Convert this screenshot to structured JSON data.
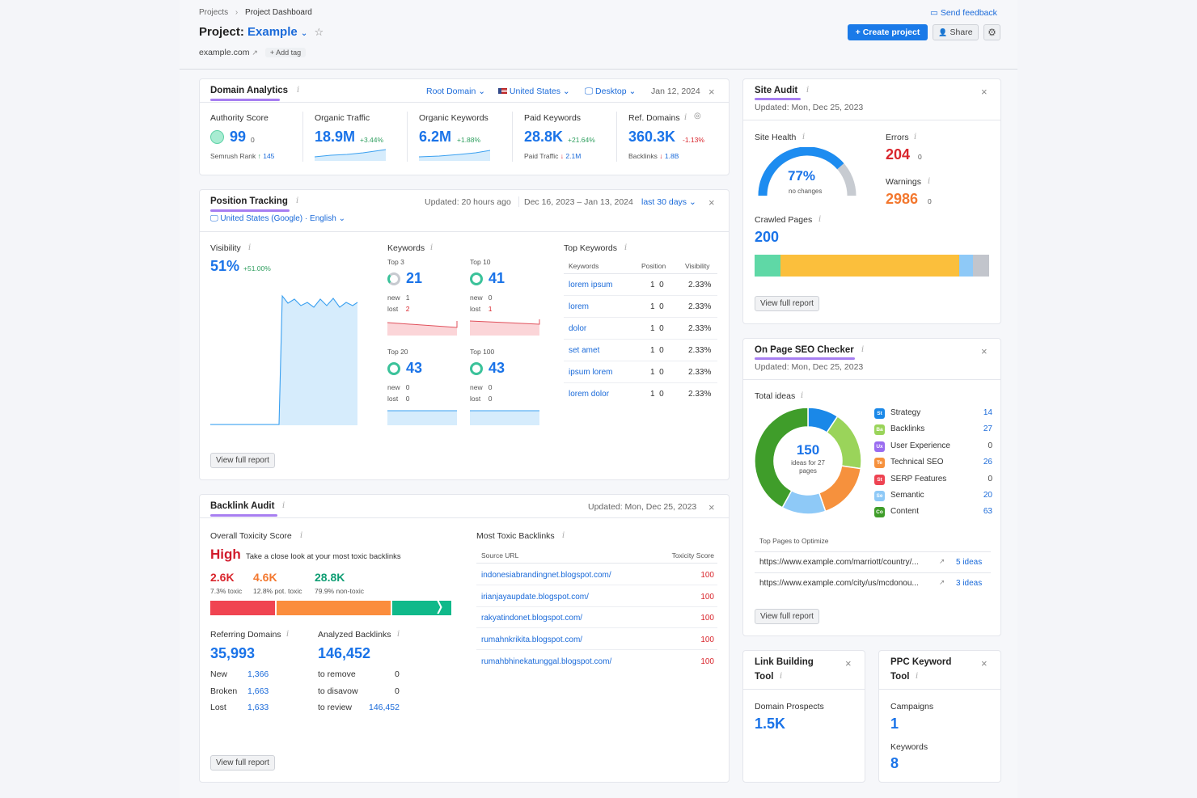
{
  "breadcrumb": {
    "root": "Projects",
    "current": "Project Dashboard"
  },
  "header": {
    "title_prefix": "Project:",
    "project_name": "Example",
    "domain": "example.com",
    "add_tag": "Add tag",
    "feedback": "Send feedback",
    "create": "Create project",
    "share": "Share"
  },
  "domain_analytics": {
    "title": "Domain Analytics",
    "filters": {
      "scope": "Root Domain",
      "country": "United States",
      "device": "Desktop",
      "date": "Jan 12, 2024"
    },
    "metrics": [
      {
        "label": "Authority Score",
        "value": "99",
        "suffix": "0",
        "sub_label": "Semrush Rank",
        "sub_value": "145"
      },
      {
        "label": "Organic Traffic",
        "value": "18.9M",
        "change": "+3.44%"
      },
      {
        "label": "Organic Keywords",
        "value": "6.2M",
        "change": "+1.88%"
      },
      {
        "label": "Paid Keywords",
        "value": "28.8K",
        "change": "+21.64%",
        "sub_label": "Paid Traffic",
        "sub_value": "2.1M"
      },
      {
        "label": "Ref. Domains",
        "value": "360.3K",
        "change": "-1.13%",
        "sub_label": "Backlinks",
        "sub_value": "1.8B"
      }
    ]
  },
  "position_tracking": {
    "title": "Position Tracking",
    "updated": "Updated: 20 hours ago",
    "range": "Dec 16, 2023 – Jan 13, 2024",
    "period": "last 30 days",
    "location": "United States (Google) · English",
    "visibility": {
      "label": "Visibility",
      "value": "51%",
      "change": "+51.00%"
    },
    "keywords_label": "Keywords",
    "keyword_groups": [
      {
        "label": "Top 3",
        "value": "21",
        "new_label": "new",
        "new": "1",
        "lost_label": "lost",
        "lost": "2"
      },
      {
        "label": "Top 10",
        "value": "41",
        "new_label": "new",
        "new": "0",
        "lost_label": "lost",
        "lost": "1"
      },
      {
        "label": "Top 20",
        "value": "43",
        "new_label": "new",
        "new": "0",
        "lost_label": "lost",
        "lost": "0"
      },
      {
        "label": "Top 100",
        "value": "43",
        "new_label": "new",
        "new": "0",
        "lost_label": "lost",
        "lost": "0"
      }
    ],
    "top_keywords": {
      "label": "Top Keywords",
      "columns": [
        "Keywords",
        "Position",
        "Visibility"
      ],
      "rows": [
        {
          "kw": "lorem ipsum",
          "pos": "1",
          "chg": "0",
          "vis": "2.33%"
        },
        {
          "kw": "lorem",
          "pos": "1",
          "chg": "0",
          "vis": "2.33%"
        },
        {
          "kw": "dolor",
          "pos": "1",
          "chg": "0",
          "vis": "2.33%"
        },
        {
          "kw": "set amet",
          "pos": "1",
          "chg": "0",
          "vis": "2.33%"
        },
        {
          "kw": "ipsum lorem",
          "pos": "1",
          "chg": "0",
          "vis": "2.33%"
        },
        {
          "kw": "lorem dolor",
          "pos": "1",
          "chg": "0",
          "vis": "2.33%"
        }
      ]
    },
    "view_report": "View full report"
  },
  "backlink_audit": {
    "title": "Backlink Audit",
    "updated": "Updated: Mon, Dec 25, 2023",
    "toxicity_label": "Overall Toxicity Score",
    "toxicity_level": "High",
    "toxicity_note": "Take a close look at your most toxic backlinks",
    "toxic_values": [
      {
        "value": "2.6K",
        "note": "7.3% toxic"
      },
      {
        "value": "4.6K",
        "note": "12.8% pot. toxic"
      },
      {
        "value": "28.8K",
        "note": "79.9% non-toxic"
      }
    ],
    "toxicity_shares": [
      0.073,
      0.128,
      0.799
    ],
    "ref_domains": {
      "label": "Referring Domains",
      "value": "35,993",
      "rows": [
        [
          "New",
          "1,366"
        ],
        [
          "Broken",
          "1,663"
        ],
        [
          "Lost",
          "1,633"
        ]
      ]
    },
    "analyzed": {
      "label": "Analyzed Backlinks",
      "value": "146,452",
      "rows": [
        [
          "to remove",
          "0"
        ],
        [
          "to disavow",
          "0"
        ],
        [
          "to review",
          "146,452"
        ]
      ]
    },
    "toxic_backlinks": {
      "label": "Most Toxic Backlinks",
      "columns": [
        "Source URL",
        "Toxicity Score"
      ],
      "rows": [
        [
          "indonesiabrandingnet.blogspot.com/",
          "100"
        ],
        [
          "irianjayaupdate.blogspot.com/",
          "100"
        ],
        [
          "rakyatindonet.blogspot.com/",
          "100"
        ],
        [
          "rumahnkrikita.blogspot.com/",
          "100"
        ],
        [
          "rumahbhinekatunggal.blogspot.com/",
          "100"
        ]
      ]
    },
    "view_report": "View full report"
  },
  "site_audit": {
    "title": "Site Audit",
    "updated": "Updated: Mon, Dec 25, 2023",
    "health_label": "Site Health",
    "health": "77%",
    "health_value": 0.77,
    "health_note": "no changes",
    "errors_label": "Errors",
    "errors": "204",
    "errors_chg": "0",
    "warnings_label": "Warnings",
    "warnings": "2986",
    "warnings_chg": "0",
    "crawled_label": "Crawled Pages",
    "crawled": "200",
    "view_report": "View full report"
  },
  "onpage": {
    "title": "On Page SEO Checker",
    "updated": "Updated: Mon, Dec 25, 2023",
    "total_label": "Total ideas",
    "total": "150",
    "total_note": "ideas for 27 pages",
    "legend": [
      {
        "abbr": "St",
        "name": "Strategy",
        "value": "14",
        "color": "#1a88e8"
      },
      {
        "abbr": "Ba",
        "name": "Backlinks",
        "value": "27",
        "color": "#9ad45a"
      },
      {
        "abbr": "Ux",
        "name": "User Experience",
        "value": "0",
        "color": "#9a6cf0"
      },
      {
        "abbr": "Te",
        "name": "Technical SEO",
        "value": "26",
        "color": "#f6913d"
      },
      {
        "abbr": "St",
        "name": "SERP Features",
        "value": "0",
        "color": "#ee4352"
      },
      {
        "abbr": "Se",
        "name": "Semantic",
        "value": "20",
        "color": "#8ec9f7"
      },
      {
        "abbr": "Co",
        "name": "Content",
        "value": "63",
        "color": "#3f9d2a"
      }
    ],
    "pages_label": "Top Pages to Optimize",
    "pages": [
      {
        "url": "https://www.example.com/marriott/country/...",
        "ideas": "5 ideas"
      },
      {
        "url": "https://www.example.com/city/us/mcdonou...",
        "ideas": "3 ideas"
      }
    ],
    "view_report": "View full report"
  },
  "link_building": {
    "title_1": "Link Building",
    "title_2": "Tool",
    "label": "Domain Prospects",
    "value": "1.5K"
  },
  "ppc": {
    "title_1": "PPC Keyword",
    "title_2": "Tool",
    "campaigns_label": "Campaigns",
    "campaigns": "1",
    "keywords_label": "Keywords",
    "keywords": "8"
  },
  "colors": {
    "accent": "#1a73e8",
    "underline": "#a77ef1",
    "toxic": "#f04451",
    "pot_toxic": "#fb8d3d",
    "non_toxic": "#10b98a"
  }
}
